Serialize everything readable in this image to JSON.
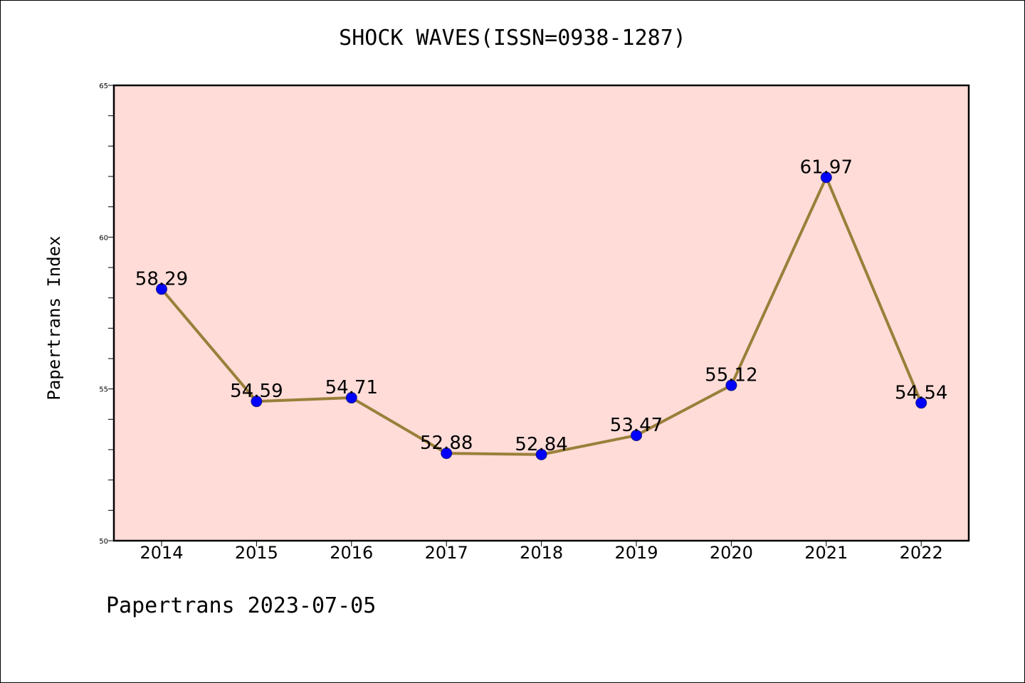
{
  "chart_data": {
    "type": "line",
    "title": "SHOCK WAVES(ISSN=0938-1287)",
    "xlabel": "",
    "ylabel": "Papertrans Index",
    "categories": [
      "2014",
      "2015",
      "2016",
      "2017",
      "2018",
      "2019",
      "2020",
      "2021",
      "2022"
    ],
    "values": [
      58.29,
      54.59,
      54.71,
      52.88,
      52.84,
      53.47,
      55.12,
      61.97,
      54.54
    ],
    "value_labels": [
      "58.29",
      "54.59",
      "54.71",
      "52.88",
      "52.84",
      "53.47",
      "55.12",
      "61.97",
      "54.54"
    ],
    "ylim": [
      50,
      65
    ],
    "yticks": [
      "50",
      "55",
      "60",
      "65"
    ],
    "grid": false,
    "colors": {
      "plot_background": "#ffdcd8",
      "line": "#9a7f3a",
      "marker": "#0000ff"
    }
  },
  "footer": "Papertrans 2023-07-05"
}
